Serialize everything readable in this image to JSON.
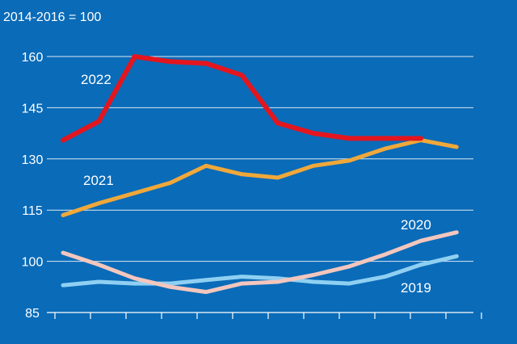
{
  "chart_data": {
    "type": "line",
    "index_note": "2014-2016 = 100",
    "x": [
      1,
      2,
      3,
      4,
      5,
      6,
      7,
      8,
      9,
      10,
      11,
      12
    ],
    "ylim": [
      85,
      165
    ],
    "yticks": [
      85,
      100,
      115,
      130,
      145,
      160
    ],
    "grid": true,
    "series": [
      {
        "name": "2022",
        "color": "#e3161f",
        "width": 6,
        "values": [
          135.5,
          141,
          160,
          158.5,
          158,
          154.5,
          140.5,
          137.5,
          136,
          136,
          136,
          null
        ]
      },
      {
        "name": "2021",
        "color": "#f0a83a",
        "width": 5,
        "values": [
          113.5,
          117,
          120,
          123,
          128,
          125.5,
          124.5,
          128,
          129.5,
          133,
          135.5,
          133.5
        ]
      },
      {
        "name": "2020",
        "color": "#f3c6bd",
        "width": 5,
        "values": [
          102.5,
          99,
          95,
          92.5,
          91,
          93.5,
          94,
          96,
          98.5,
          102,
          106,
          108.5
        ]
      },
      {
        "name": "2019",
        "color": "#8fd0f2",
        "width": 5,
        "values": [
          93,
          94,
          93.5,
          93.5,
          94.5,
          95.5,
          95,
          94,
          93.5,
          95.5,
          99,
          101.5
        ]
      }
    ]
  }
}
